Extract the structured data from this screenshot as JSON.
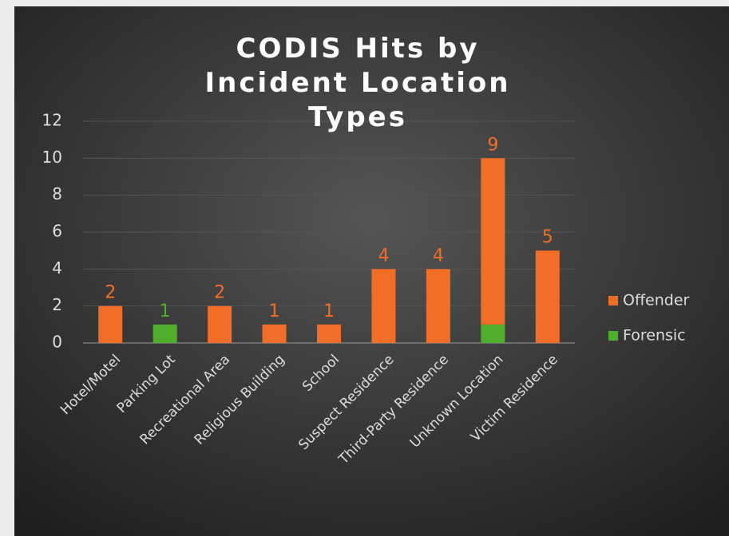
{
  "chart_data": {
    "type": "stacked_bar",
    "title": "CODIS Hits by Incident Location Types",
    "categories": [
      "Hotel/Motel",
      "Parking Lot",
      "Recreational Area",
      "Religious Building",
      "School",
      "Suspect Residence",
      "Third-Party  Residence",
      "Unknown Location",
      "Victim Residence"
    ],
    "series": [
      {
        "name": "Offender",
        "color": "#f26e27",
        "values": [
          2,
          null,
          2,
          1,
          1,
          4,
          4,
          9,
          5
        ]
      },
      {
        "name": "Forensic",
        "color": "#4fae2b",
        "values": [
          null,
          1,
          null,
          null,
          null,
          null,
          null,
          1,
          null
        ]
      }
    ],
    "ylim": [
      0,
      12
    ],
    "yticks": [
      0,
      2,
      4,
      6,
      8,
      10,
      12
    ],
    "grid": true,
    "legend": "right"
  }
}
